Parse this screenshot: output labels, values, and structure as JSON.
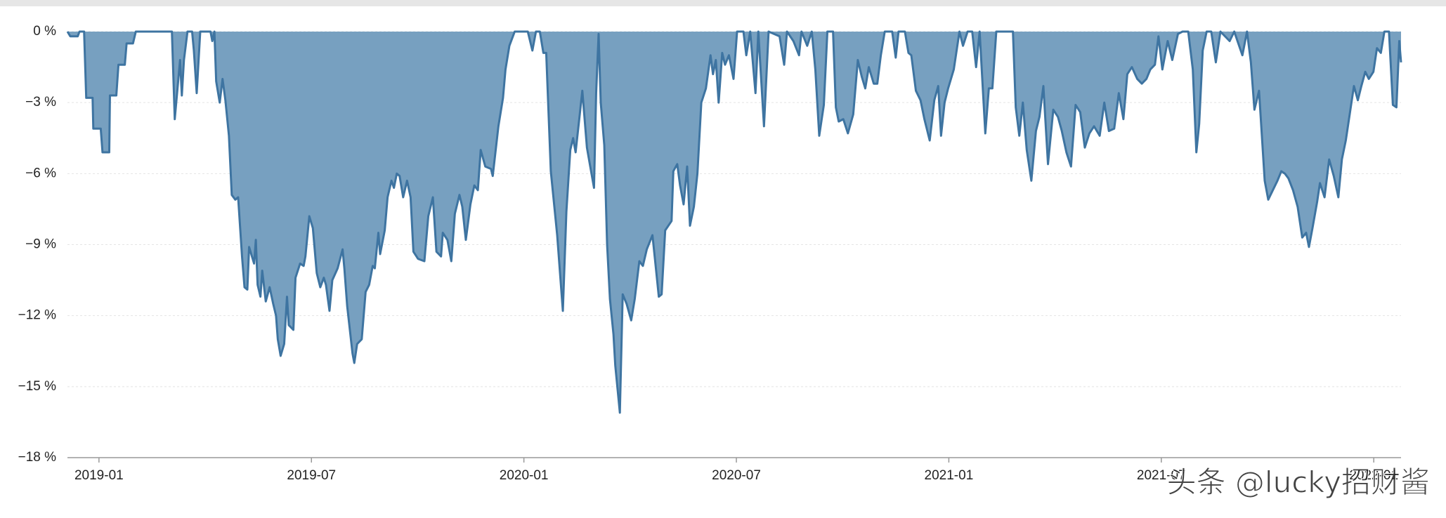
{
  "chart_data": {
    "type": "area",
    "watermark": "头条 @lucky招财酱",
    "x": [
      -0.89,
      -0.81,
      -0.6,
      -0.55,
      -0.42,
      -0.36,
      -0.18,
      -0.16,
      0.05,
      0.1,
      0.29,
      0.31,
      0.49,
      0.55,
      0.73,
      0.78,
      0.96,
      1.04,
      2.06,
      2.14,
      2.29,
      2.34,
      2.4,
      2.5,
      2.63,
      2.68,
      2.76,
      2.86,
      3.15,
      3.2,
      3.26,
      3.31,
      3.41,
      3.49,
      3.57,
      3.67,
      3.75,
      3.85,
      3.93,
      4.04,
      4.11,
      4.19,
      4.24,
      4.38,
      4.43,
      4.48,
      4.56,
      4.61,
      4.71,
      4.82,
      4.92,
      5.0,
      5.05,
      5.13,
      5.23,
      5.31,
      5.36,
      5.49,
      5.55,
      5.68,
      5.78,
      5.83,
      5.94,
      6.04,
      6.15,
      6.25,
      6.35,
      6.41,
      6.51,
      6.59,
      6.74,
      6.88,
      6.93,
      7.01,
      7.16,
      7.21,
      7.29,
      7.42,
      7.53,
      7.63,
      7.73,
      7.79,
      7.89,
      7.94,
      8.07,
      8.15,
      8.26,
      8.33,
      8.41,
      8.49,
      8.59,
      8.7,
      8.8,
      8.88,
      9.01,
      9.19,
      9.3,
      9.43,
      9.53,
      9.66,
      9.71,
      9.84,
      9.95,
      10.05,
      10.18,
      10.26,
      10.36,
      10.49,
      10.6,
      10.7,
      10.78,
      10.91,
      11.07,
      11.12,
      11.28,
      11.41,
      11.48,
      11.59,
      11.74,
      12.11,
      12.24,
      12.34,
      12.45,
      12.55,
      12.63,
      12.76,
      12.94,
      13.1,
      13.2,
      13.31,
      13.39,
      13.46,
      13.57,
      13.65,
      13.78,
      13.85,
      13.98,
      14.04,
      14.11,
      14.17,
      14.27,
      14.35,
      14.43,
      14.53,
      14.58,
      14.71,
      14.79,
      14.9,
      15.03,
      15.13,
      15.26,
      15.36,
      15.47,
      15.63,
      15.7,
      15.81,
      15.89,
      15.99,
      16.17,
      16.22,
      16.33,
      16.41,
      16.51,
      16.61,
      16.69,
      16.8,
      16.9,
      17.01,
      17.14,
      17.27,
      17.34,
      17.42,
      17.5,
      17.6,
      17.68,
      17.79,
      17.92,
      18.02,
      18.2,
      18.28,
      18.39,
      18.54,
      18.62,
      18.78,
      18.91,
      19.22,
      19.35,
      19.43,
      19.61,
      19.77,
      19.84,
      20.0,
      20.13,
      20.23,
      20.34,
      20.47,
      20.57,
      20.73,
      20.81,
      20.89,
      21.02,
      21.15,
      21.3,
      21.43,
      21.54,
      21.64,
      21.74,
      21.88,
      21.98,
      22.08,
      22.19,
      22.4,
      22.5,
      22.58,
      22.76,
      22.86,
      22.94,
      23.07,
      23.2,
      23.31,
      23.46,
      23.59,
      23.7,
      23.78,
      23.88,
      23.98,
      24.14,
      24.3,
      24.4,
      24.53,
      24.66,
      24.77,
      24.87,
      25.03,
      25.13,
      25.23,
      25.34,
      25.81,
      25.89,
      25.99,
      26.09,
      26.2,
      26.33,
      26.46,
      26.56,
      26.67,
      26.8,
      26.95,
      27.08,
      27.19,
      27.32,
      27.45,
      27.58,
      27.71,
      27.84,
      27.97,
      28.1,
      28.26,
      28.39,
      28.52,
      28.67,
      28.8,
      28.93,
      29.04,
      29.17,
      29.32,
      29.45,
      29.58,
      29.69,
      29.82,
      29.92,
      30.03,
      30.18,
      30.31,
      30.47,
      30.6,
      30.76,
      30.89,
      30.99,
      31.07,
      31.17,
      31.28,
      31.41,
      31.54,
      31.67,
      31.8,
      31.93,
      32.06,
      32.29,
      32.42,
      32.53,
      32.63,
      32.76,
      32.92,
      33.02,
      33.15,
      33.28,
      33.39,
      33.49,
      33.59,
      33.72,
      33.85,
      33.98,
      34.09,
      34.17,
      34.27,
      34.4,
      34.48,
      34.61,
      34.74,
      34.87,
      35.0,
      35.1,
      35.21,
      35.34,
      35.44,
      35.55,
      35.65,
      35.76,
      35.86,
      35.99,
      36.09,
      36.2,
      36.3,
      36.43,
      36.54,
      36.64,
      36.72,
      36.77
    ],
    "series": [
      {
        "color": "#3e74a1",
        "fill": "#77a0c0",
        "values": [
          0,
          -0.2,
          -0.2,
          0,
          0,
          -2.8,
          -2.8,
          -4.1,
          -4.1,
          -5.1,
          -5.1,
          -2.7,
          -2.7,
          -1.4,
          -1.4,
          -0.5,
          -0.5,
          0,
          0,
          -3.7,
          -1.2,
          -2.7,
          -1.2,
          0,
          0,
          -0.8,
          -2.6,
          0,
          0,
          -0.4,
          0,
          -2.1,
          -3.0,
          -2.0,
          -2.9,
          -4.4,
          -6.9,
          -7.1,
          -7.0,
          -9.5,
          -10.8,
          -10.9,
          -9.1,
          -9.8,
          -8.8,
          -10.7,
          -11.2,
          -10.1,
          -11.4,
          -10.8,
          -11.5,
          -12.0,
          -13.0,
          -13.7,
          -13.2,
          -11.2,
          -12.4,
          -12.6,
          -10.4,
          -9.8,
          -9.9,
          -9.5,
          -7.8,
          -8.3,
          -10.2,
          -10.8,
          -10.4,
          -10.7,
          -11.8,
          -10.5,
          -10.0,
          -9.2,
          -10.0,
          -11.6,
          -13.6,
          -14.0,
          -13.2,
          -13.0,
          -11.0,
          -10.7,
          -9.9,
          -10.0,
          -8.5,
          -9.4,
          -8.4,
          -7.0,
          -6.3,
          -6.6,
          -6.0,
          -6.1,
          -7.0,
          -6.3,
          -7.0,
          -9.3,
          -9.6,
          -9.7,
          -7.8,
          -7.0,
          -9.3,
          -9.5,
          -8.5,
          -8.8,
          -9.7,
          -7.7,
          -6.9,
          -7.4,
          -8.8,
          -7.3,
          -6.5,
          -6.7,
          -5.0,
          -5.7,
          -5.8,
          -6.1,
          -4.0,
          -2.8,
          -1.6,
          -0.6,
          0,
          0,
          -0.8,
          0,
          0,
          -0.9,
          -0.9,
          -5.9,
          -8.6,
          -11.8,
          -7.6,
          -5.0,
          -4.5,
          -5.1,
          -3.6,
          -2.5,
          -4.9,
          -5.5,
          -6.6,
          -2.6,
          -0.1,
          -3.0,
          -4.8,
          -9.0,
          -11.3,
          -12.8,
          -14.1,
          -16.1,
          -11.1,
          -11.5,
          -12.2,
          -11.3,
          -9.7,
          -9.9,
          -9.2,
          -8.6,
          -9.6,
          -11.2,
          -11.1,
          -8.4,
          -8.0,
          -5.9,
          -5.6,
          -6.5,
          -7.3,
          -5.7,
          -8.2,
          -7.4,
          -6.0,
          -3.0,
          -2.4,
          -1.0,
          -1.8,
          -1.2,
          -3.0,
          -0.9,
          -1.4,
          -1.0,
          -2.0,
          0,
          0,
          -1.0,
          0,
          -2.6,
          0,
          -4.0,
          0,
          -0.2,
          -1.4,
          0,
          -0.4,
          -1.0,
          0,
          -0.6,
          0,
          -1.6,
          -4.4,
          -3.1,
          0,
          0,
          -3.2,
          -3.8,
          -3.7,
          -4.3,
          -3.5,
          -1.2,
          -1.9,
          -2.4,
          -1.5,
          -2.2,
          -2.2,
          -1.0,
          0,
          0,
          -1.1,
          0,
          0,
          -0.9,
          -1.0,
          -2.5,
          -2.9,
          -3.7,
          -4.6,
          -2.9,
          -2.3,
          -4.4,
          -3.0,
          -2.4,
          -1.6,
          0,
          -0.6,
          0,
          0,
          -1.5,
          0,
          -4.3,
          -2.4,
          -2.4,
          0,
          0,
          -3.2,
          -4.4,
          -3.0,
          -5.0,
          -6.3,
          -4.2,
          -3.6,
          -2.3,
          -5.6,
          -3.3,
          -3.6,
          -4.2,
          -5.1,
          -5.7,
          -3.1,
          -3.4,
          -4.9,
          -4.3,
          -4.0,
          -4.4,
          -3.0,
          -4.2,
          -4.1,
          -2.6,
          -3.7,
          -1.8,
          -1.5,
          -2.0,
          -2.2,
          -2.0,
          -1.6,
          -1.4,
          -0.2,
          -1.6,
          -0.4,
          -1.2,
          -0.1,
          0,
          0,
          -1.6,
          -5.1,
          -3.9,
          -0.8,
          0,
          0,
          -1.3,
          0,
          -0.2,
          -0.4,
          0,
          -1.0,
          0,
          -1.3,
          -3.3,
          -2.5,
          -6.3,
          -7.1,
          -6.7,
          -6.3,
          -5.9,
          -6.0,
          -6.2,
          -6.7,
          -7.4,
          -8.7,
          -8.5,
          -9.1,
          -8.3,
          -7.2,
          -6.4,
          -7.0,
          -5.4,
          -6.1,
          -7.0,
          -5.4,
          -4.6,
          -3.3,
          -2.3,
          -2.9,
          -2.3,
          -1.7,
          -2.0,
          -1.7,
          -0.7,
          -0.9,
          0,
          0,
          -3.1,
          -3.2,
          -0.4,
          -1.3
        ]
      }
    ],
    "xlim": [
      -0.89,
      36.77
    ],
    "xticks": [
      {
        "value": 0,
        "label": "2019-01"
      },
      {
        "value": 6,
        "label": "2019-07"
      },
      {
        "value": 12,
        "label": "2020-01"
      },
      {
        "value": 18,
        "label": "2020-07"
      },
      {
        "value": 24,
        "label": "2021-01"
      },
      {
        "value": 30,
        "label": "2021-07"
      },
      {
        "value": 36,
        "label": "2022-01"
      }
    ],
    "ylim": [
      -18,
      0
    ],
    "yticks": [
      {
        "value": 0,
        "label": "0 %"
      },
      {
        "value": -3,
        "label": "−3 %"
      },
      {
        "value": -6,
        "label": "−6 %"
      },
      {
        "value": -9,
        "label": "−9 %"
      },
      {
        "value": -12,
        "label": "−12 %"
      },
      {
        "value": -15,
        "label": "−15 %"
      },
      {
        "value": -18,
        "label": "−18 %"
      }
    ],
    "grid": true
  }
}
